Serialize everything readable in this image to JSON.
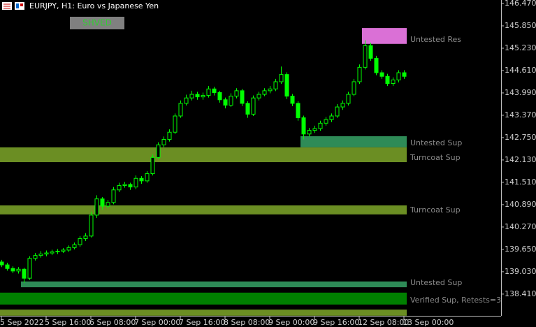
{
  "header": {
    "title": "EURJPY, H1:  Euro vs Japanese Yen",
    "button": "SHVED"
  },
  "chart_data": {
    "type": "candlestick",
    "categories": [
      "5 Sep 2022",
      null,
      null,
      null,
      null,
      null,
      null,
      null,
      "5 Sep 16:00",
      null,
      null,
      null,
      null,
      null,
      null,
      null,
      "6 Sep 08:00",
      null,
      null,
      null,
      null,
      null,
      null,
      null,
      "7 Sep 00:00",
      null,
      null,
      null,
      null,
      null,
      null,
      null,
      "7 Sep 16:00",
      null,
      null,
      null,
      null,
      null,
      null,
      null,
      "8 Sep 08:00",
      null,
      null,
      null,
      null,
      null,
      null,
      null,
      "9 Sep 00:00",
      null,
      null,
      null,
      null,
      null,
      null,
      null,
      "9 Sep 16:00",
      null,
      null,
      null,
      null,
      null,
      null,
      null,
      "12 Sep 08:00",
      null,
      null,
      null,
      null,
      null,
      null,
      null,
      "13 Sep 00:00"
    ],
    "ohlc": [
      [
        139.3,
        139.36,
        139.16,
        139.22
      ],
      [
        139.22,
        139.28,
        139.06,
        139.12
      ],
      [
        139.12,
        139.18,
        138.99,
        139.05
      ],
      [
        139.05,
        139.16,
        138.98,
        139.1
      ],
      [
        139.1,
        139.14,
        138.72,
        138.85
      ],
      [
        138.85,
        139.46,
        138.8,
        139.4
      ],
      [
        139.4,
        139.55,
        139.34,
        139.48
      ],
      [
        139.48,
        139.6,
        139.42,
        139.52
      ],
      [
        139.52,
        139.62,
        139.46,
        139.55
      ],
      [
        139.55,
        139.64,
        139.49,
        139.58
      ],
      [
        139.58,
        139.66,
        139.52,
        139.6
      ],
      [
        139.6,
        139.69,
        139.55,
        139.63
      ],
      [
        139.63,
        139.76,
        139.58,
        139.7
      ],
      [
        139.7,
        139.84,
        139.65,
        139.78
      ],
      [
        139.78,
        140.02,
        139.72,
        139.95
      ],
      [
        139.95,
        140.1,
        139.88,
        140.02
      ],
      [
        140.02,
        140.7,
        139.98,
        140.6
      ],
      [
        140.6,
        141.15,
        140.52,
        141.05
      ],
      [
        141.05,
        141.1,
        140.75,
        140.85
      ],
      [
        140.85,
        141.02,
        140.78,
        140.95
      ],
      [
        140.95,
        141.38,
        140.9,
        141.3
      ],
      [
        141.3,
        141.5,
        141.24,
        141.42
      ],
      [
        141.42,
        141.52,
        141.36,
        141.45
      ],
      [
        141.45,
        141.5,
        141.3,
        141.38
      ],
      [
        141.38,
        141.7,
        141.32,
        141.62
      ],
      [
        141.62,
        141.68,
        141.47,
        141.55
      ],
      [
        141.55,
        141.82,
        141.5,
        141.75
      ],
      [
        141.75,
        142.28,
        141.7,
        142.2
      ],
      [
        142.2,
        142.62,
        142.15,
        142.55
      ],
      [
        142.55,
        142.78,
        142.48,
        142.7
      ],
      [
        142.7,
        142.98,
        142.64,
        142.9
      ],
      [
        142.9,
        143.42,
        142.85,
        143.35
      ],
      [
        143.35,
        143.78,
        143.3,
        143.7
      ],
      [
        143.7,
        143.94,
        143.64,
        143.85
      ],
      [
        143.85,
        144.05,
        143.78,
        143.95
      ],
      [
        143.95,
        144.02,
        143.8,
        143.88
      ],
      [
        143.88,
        144.0,
        143.8,
        143.92
      ],
      [
        143.92,
        144.18,
        143.86,
        144.1
      ],
      [
        144.1,
        144.16,
        143.92,
        144.0
      ],
      [
        144.0,
        144.05,
        143.72,
        143.8
      ],
      [
        143.8,
        143.86,
        143.56,
        143.65
      ],
      [
        143.65,
        143.98,
        143.6,
        143.9
      ],
      [
        143.9,
        144.12,
        143.84,
        144.05
      ],
      [
        144.05,
        144.1,
        143.62,
        143.7
      ],
      [
        143.7,
        143.76,
        143.3,
        143.4
      ],
      [
        143.4,
        143.92,
        143.35,
        143.85
      ],
      [
        143.85,
        144.02,
        143.78,
        143.95
      ],
      [
        143.95,
        144.12,
        143.9,
        144.05
      ],
      [
        144.05,
        144.18,
        143.98,
        144.1
      ],
      [
        144.1,
        144.38,
        144.04,
        144.3
      ],
      [
        144.3,
        144.72,
        144.24,
        144.5
      ],
      [
        144.5,
        144.56,
        143.82,
        143.9
      ],
      [
        143.9,
        143.96,
        143.62,
        143.7
      ],
      [
        143.7,
        143.76,
        143.22,
        143.3
      ],
      [
        143.3,
        143.36,
        142.7,
        142.85
      ],
      [
        142.85,
        143.02,
        142.78,
        142.95
      ],
      [
        142.95,
        143.08,
        142.88,
        143.0
      ],
      [
        143.0,
        143.22,
        142.94,
        143.15
      ],
      [
        143.15,
        143.32,
        143.08,
        143.25
      ],
      [
        143.25,
        143.42,
        143.18,
        143.35
      ],
      [
        143.35,
        143.68,
        143.3,
        143.6
      ],
      [
        143.6,
        143.78,
        143.52,
        143.7
      ],
      [
        143.7,
        144.02,
        143.64,
        143.95
      ],
      [
        143.95,
        144.38,
        143.9,
        144.3
      ],
      [
        144.3,
        144.78,
        144.24,
        144.7
      ],
      [
        144.7,
        145.45,
        144.64,
        145.3
      ],
      [
        145.3,
        145.38,
        144.88,
        144.95
      ],
      [
        144.95,
        145.02,
        144.48,
        144.55
      ],
      [
        144.55,
        144.62,
        144.38,
        144.45
      ],
      [
        144.45,
        144.52,
        144.18,
        144.25
      ],
      [
        144.25,
        144.42,
        144.18,
        144.35
      ],
      [
        144.35,
        144.62,
        144.28,
        144.55
      ],
      [
        144.55,
        144.62,
        144.38,
        144.45
      ]
    ],
    "color": "#00ff00",
    "ylim": [
      137.807,
      146.567
    ],
    "yticks": [
      {
        "value": 146.47,
        "label": "146.470"
      },
      {
        "value": 145.85,
        "label": "145.850"
      },
      {
        "value": 145.23,
        "label": "145.230"
      },
      {
        "value": 144.61,
        "label": "144.610"
      },
      {
        "value": 143.99,
        "label": "143.990"
      },
      {
        "value": 143.37,
        "label": "143.370"
      },
      {
        "value": 142.75,
        "label": "142.750"
      },
      {
        "value": 142.13,
        "label": "142.130"
      },
      {
        "value": 141.51,
        "label": "141.510"
      },
      {
        "value": 140.89,
        "label": "140.890"
      },
      {
        "value": 140.27,
        "label": "140.270"
      },
      {
        "value": 139.65,
        "label": "139.650"
      },
      {
        "value": 139.03,
        "label": "139.030"
      },
      {
        "value": 138.41,
        "label": "138.410"
      }
    ],
    "zones": [
      {
        "label": "Untested Res",
        "color": "#da70d6",
        "top": 145.79,
        "bottom": 145.35,
        "start": 65
      },
      {
        "label": "Untested Sup",
        "color": "#2e8b57",
        "top": 142.79,
        "bottom": 142.48,
        "start": 54
      },
      {
        "label": "Turncoat Sup",
        "color": "#6b8e23",
        "top": 142.48,
        "bottom": 142.07,
        "start": 0
      },
      {
        "label": "Turncoat Sup",
        "color": "#6b8e23",
        "top": 140.87,
        "bottom": 140.62,
        "start": 0
      },
      {
        "label": "Untested Sup",
        "color": "#2e8b57",
        "top": 138.76,
        "bottom": 138.6,
        "start": 4
      },
      {
        "label": "Verified Sup, Retests=3",
        "color": "#008000",
        "top": 138.45,
        "bottom": 138.12,
        "start": 0
      },
      {
        "color": "#6b8e23",
        "top": 137.98,
        "bottom": 137.81,
        "start": 0
      }
    ]
  }
}
